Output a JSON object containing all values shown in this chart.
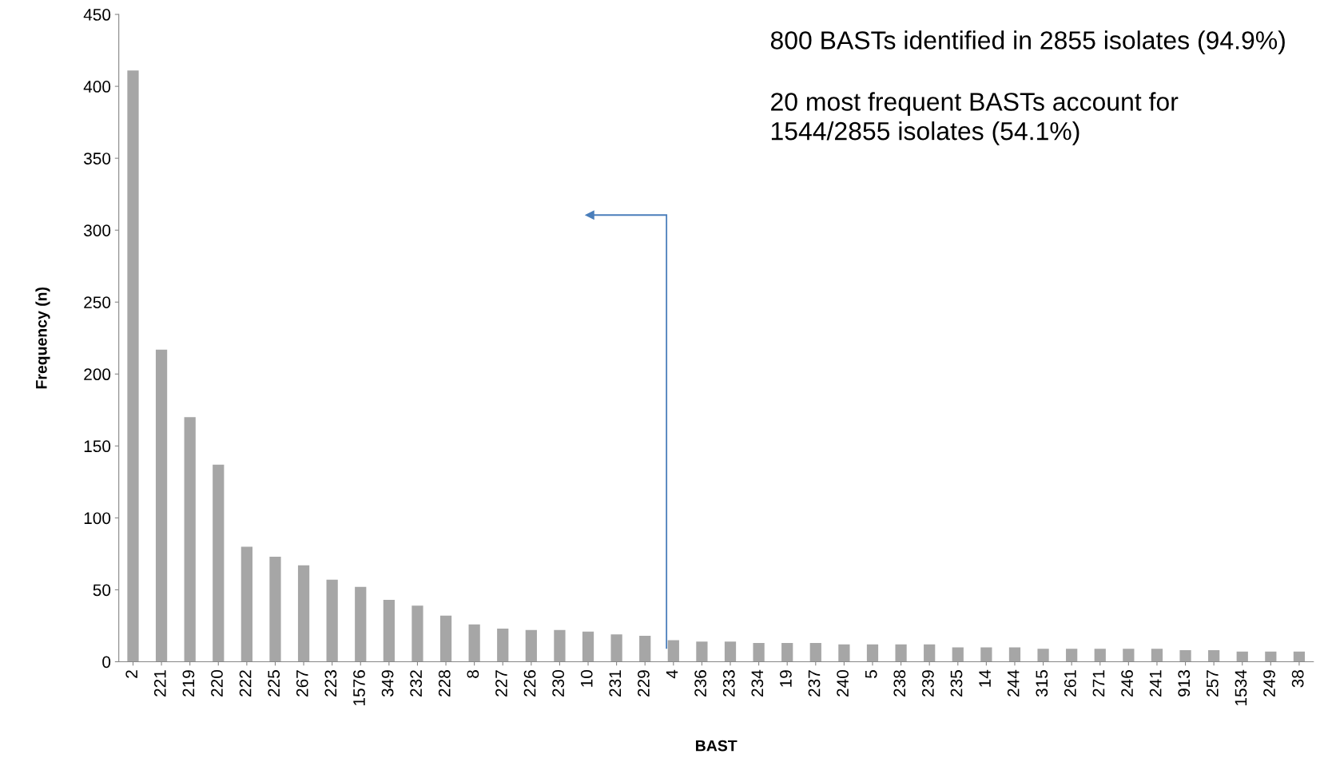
{
  "chart_data": {
    "type": "bar",
    "xlabel": "BAST",
    "ylabel": "Frequency (n)",
    "categories": [
      "2",
      "221",
      "219",
      "220",
      "222",
      "225",
      "267",
      "223",
      "1576",
      "349",
      "232",
      "228",
      "8",
      "227",
      "226",
      "230",
      "10",
      "231",
      "229",
      "4",
      "236",
      "233",
      "234",
      "19",
      "237",
      "240",
      "5",
      "238",
      "239",
      "235",
      "14",
      "244",
      "315",
      "261",
      "271",
      "246",
      "241",
      "913",
      "257",
      "1534",
      "249",
      "38"
    ],
    "values": [
      411,
      217,
      170,
      137,
      80,
      73,
      67,
      57,
      52,
      43,
      39,
      32,
      26,
      23,
      22,
      22,
      21,
      19,
      18,
      15,
      14,
      14,
      13,
      13,
      13,
      12,
      12,
      12,
      12,
      10,
      10,
      10,
      9,
      9,
      9,
      9,
      9,
      8,
      8,
      7,
      7,
      7
    ],
    "color": "#a6a6a6",
    "ylim": [
      0,
      450
    ],
    "yticks": [
      0,
      50,
      100,
      150,
      200,
      250,
      300,
      350,
      400,
      450
    ],
    "grid": false,
    "legend": false,
    "annotations": [
      "800 BASTs identified in 2855 isolates (94.9%)",
      "20 most frequent BASTs account for\n1544/2855 isolates (54.1%)"
    ]
  }
}
